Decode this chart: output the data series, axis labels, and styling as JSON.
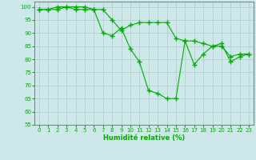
{
  "title": "",
  "xlabel": "Humidité relative (%)",
  "ylabel": "",
  "bg_color": "#cce8e8",
  "grid_color": "#aacccc",
  "line_color": "#00aa00",
  "marker": "+",
  "linewidth": 0.8,
  "markersize": 4,
  "markeredgewidth": 1.0,
  "xlim": [
    -0.5,
    23.5
  ],
  "ylim": [
    55,
    102
  ],
  "yticks": [
    55,
    60,
    65,
    70,
    75,
    80,
    85,
    90,
    95,
    100
  ],
  "xticks": [
    0,
    1,
    2,
    3,
    4,
    5,
    6,
    7,
    8,
    9,
    10,
    11,
    12,
    13,
    14,
    15,
    16,
    17,
    18,
    19,
    20,
    21,
    22,
    23
  ],
  "series": [
    [
      99,
      99,
      100,
      100,
      100,
      100,
      99,
      99,
      95,
      91,
      93,
      94,
      94,
      94,
      94,
      88,
      87,
      87,
      86,
      85,
      85,
      81,
      82,
      82
    ],
    [
      99,
      99,
      99,
      100,
      99,
      99,
      99,
      90,
      89,
      92,
      84,
      79,
      68,
      67,
      65,
      65,
      87,
      78,
      82,
      85,
      86,
      79,
      81,
      82
    ]
  ]
}
